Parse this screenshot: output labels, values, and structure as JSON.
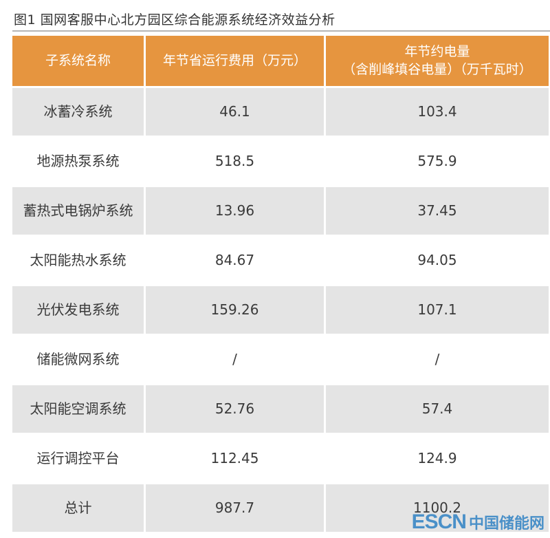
{
  "caption": "图1 国网客服中心北方园区综合能源系统经济效益分析",
  "header": {
    "col1": "子系统名称",
    "col2": "年节省运行费用（万元）",
    "col3_line1": "年节约电量",
    "col3_line2": "（含削峰填谷电量）（万千瓦时）"
  },
  "rows": [
    {
      "name": "冰蓄冷系统",
      "cost": "46.1",
      "energy": "103.4"
    },
    {
      "name": "地源热泵系统",
      "cost": "518.5",
      "energy": "575.9"
    },
    {
      "name": "蓄热式电锅炉系统",
      "cost": "13.96",
      "energy": "37.45"
    },
    {
      "name": "太阳能热水系统",
      "cost": "84.67",
      "energy": "94.05"
    },
    {
      "name": "光伏发电系统",
      "cost": "159.26",
      "energy": "107.1"
    },
    {
      "name": "储能微网系统",
      "cost": "/",
      "energy": "/"
    },
    {
      "name": "太阳能空调系统",
      "cost": "52.76",
      "energy": "57.4"
    },
    {
      "name": "运行调控平台",
      "cost": "112.45",
      "energy": "124.9"
    },
    {
      "name": "总计",
      "cost": "987.7",
      "energy": "1100.2"
    }
  ],
  "watermark": {
    "latin": "ESCN",
    "chinese": "中国储能网"
  },
  "colors": {
    "header_bg": "#e6953f",
    "shaded_row": "#e4e4e4",
    "watermark": "#4a90c8"
  }
}
